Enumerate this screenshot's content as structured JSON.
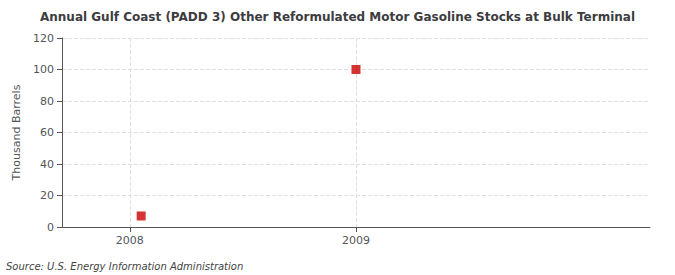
{
  "chart_data": {
    "type": "scatter",
    "title": "Annual Gulf Coast (PADD 3) Other Reformulated Motor Gasoline Stocks at Bulk Terminal",
    "ylabel": "Thousand Barrels",
    "annotation": "Source: U.S. Energy Information Administration",
    "x": [
      2008.05,
      2009.0
    ],
    "values": [
      7,
      100
    ],
    "color": "#cc0000",
    "marker": "square",
    "xlim": [
      2007.7,
      2010.3
    ],
    "xticks": [
      2008,
      2009
    ],
    "ylim": [
      0,
      120
    ],
    "yticks": [
      0,
      20,
      40,
      60,
      80,
      100,
      120
    ],
    "grid": true
  }
}
